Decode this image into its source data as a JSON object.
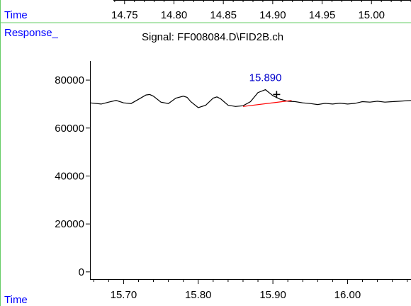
{
  "labels": {
    "time_top": "Time",
    "response": "Response_",
    "time_bottom": "Time",
    "signal": "Signal: FF008084.D\\FID2B.ch"
  },
  "colors": {
    "axis_text_blue": "#0000ff",
    "frame_green": "#66cc66",
    "trace": "#000000",
    "baseline": "#ff0000",
    "peak_label": "#0000cc"
  },
  "chart_data": {
    "type": "line",
    "title": "Signal: FF008084.D\\FID2B.ch",
    "xlabel": "Time",
    "ylabel": "Response_",
    "xlim": [
      15.655,
      16.085
    ],
    "ylim": [
      -3000,
      88000
    ],
    "xticks": [
      15.7,
      15.8,
      15.9,
      16.0
    ],
    "xtick_labels": [
      "15.70",
      "15.80",
      "15.90",
      "16.00"
    ],
    "yticks": [
      0,
      20000,
      40000,
      60000,
      80000
    ],
    "ytick_labels": [
      "0",
      "20000",
      "40000",
      "60000",
      "80000"
    ],
    "top_axis": {
      "xlim": [
        14.715,
        15.04
      ],
      "ticks": [
        14.75,
        14.8,
        14.85,
        14.9,
        14.95,
        15.0
      ],
      "tick_labels": [
        "14.75",
        "14.80",
        "14.85",
        "14.90",
        "14.95",
        "15.00"
      ]
    },
    "series": [
      {
        "x": [
          15.655,
          15.67,
          15.68,
          15.69,
          15.7,
          15.71,
          15.72,
          15.73,
          15.735,
          15.74,
          15.75,
          15.76,
          15.77,
          15.78,
          15.785,
          15.79,
          15.8,
          15.81,
          15.82,
          15.825,
          15.83,
          15.84,
          15.85,
          15.86,
          15.87,
          15.88,
          15.89,
          15.9,
          15.91,
          15.92,
          15.93,
          15.94,
          15.95,
          15.96,
          15.97,
          15.98,
          15.99,
          16.0,
          16.01,
          16.02,
          16.03,
          16.04,
          16.05,
          16.06,
          16.07,
          16.085
        ],
        "y": [
          70500,
          70000,
          70800,
          71500,
          70500,
          70200,
          72000,
          73800,
          74000,
          73300,
          70800,
          70200,
          72500,
          73300,
          72800,
          71000,
          68500,
          69500,
          72500,
          73000,
          72200,
          69500,
          69000,
          69300,
          71000,
          74800,
          76000,
          73500,
          72000,
          71200,
          71000,
          70500,
          70200,
          69800,
          70300,
          70000,
          70400,
          70000,
          70300,
          71000,
          70800,
          71200,
          70800,
          71000,
          71200,
          71500
        ]
      }
    ],
    "peak": {
      "label": "15.890",
      "x": 15.89,
      "y": 76000
    },
    "cursor_marker": {
      "x": 15.905,
      "y": 74000
    },
    "baseline": {
      "x": [
        15.86,
        15.925
      ],
      "y": [
        69000,
        71500
      ]
    }
  }
}
